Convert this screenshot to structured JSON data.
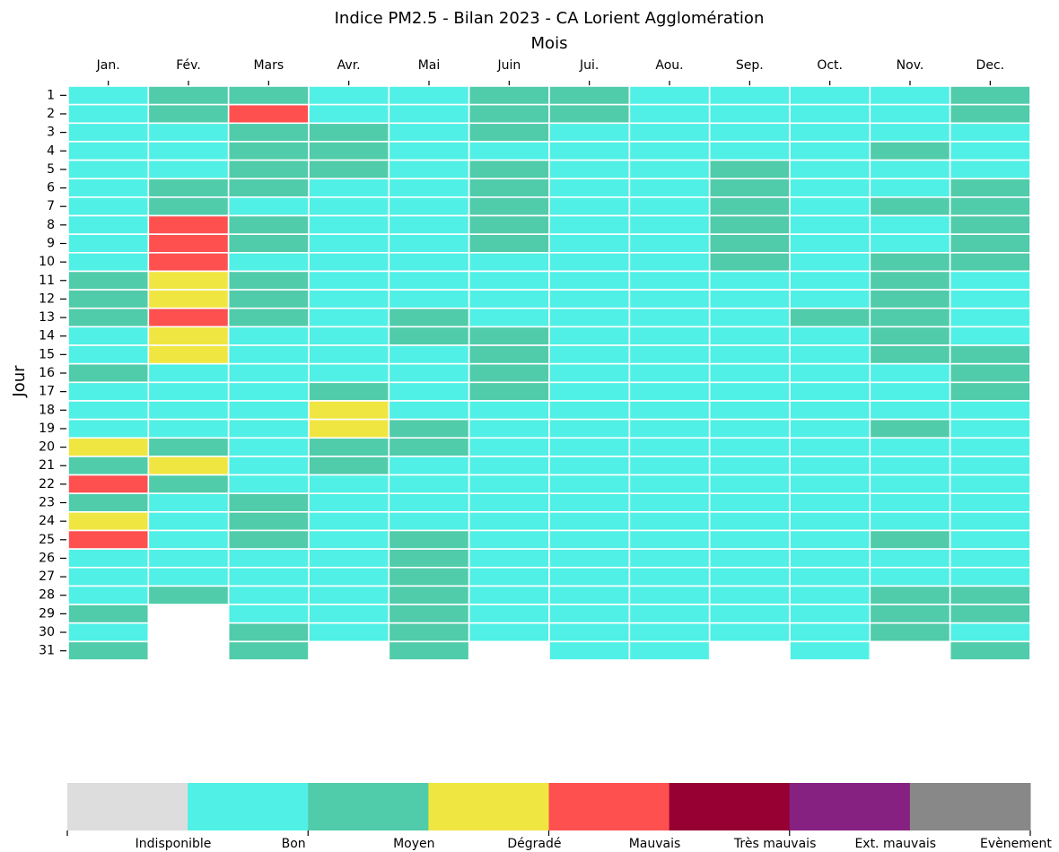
{
  "chart_data": {
    "type": "heatmap",
    "title": "Indice PM2.5 - Bilan 2023 - CA Lorient Agglomération",
    "xlabel": "Mois",
    "ylabel": "Jour",
    "columns": [
      "Jan.",
      "Fév.",
      "Mars",
      "Avr.",
      "Mai",
      "Juin",
      "Jui.",
      "Aou.",
      "Sep.",
      "Oct.",
      "Nov.",
      "Dec."
    ],
    "rows": [
      1,
      2,
      3,
      4,
      5,
      6,
      7,
      8,
      9,
      10,
      11,
      12,
      13,
      14,
      15,
      16,
      17,
      18,
      19,
      20,
      21,
      22,
      23,
      24,
      25,
      26,
      27,
      28,
      29,
      30,
      31
    ],
    "classes": [
      {
        "name": "Indisponible",
        "color": "#dddddd"
      },
      {
        "name": "Bon",
        "color": "#50f0e6"
      },
      {
        "name": "Moyen",
        "color": "#50ccaa"
      },
      {
        "name": "Dégradé",
        "color": "#f0e641"
      },
      {
        "name": "Mauvais",
        "color": "#ff5050"
      },
      {
        "name": "Très mauvais",
        "color": "#960032"
      },
      {
        "name": "Ext. mauvais",
        "color": "#872181"
      },
      {
        "name": "Evènement",
        "color": "#888888"
      }
    ],
    "values": [
      [
        1,
        2,
        2,
        1,
        1,
        2,
        2,
        1,
        1,
        1,
        1,
        2
      ],
      [
        1,
        2,
        4,
        1,
        1,
        2,
        2,
        1,
        1,
        1,
        1,
        2
      ],
      [
        1,
        1,
        2,
        2,
        1,
        2,
        1,
        1,
        1,
        1,
        1,
        1
      ],
      [
        1,
        1,
        2,
        2,
        1,
        1,
        1,
        1,
        1,
        1,
        2,
        1
      ],
      [
        1,
        1,
        2,
        2,
        1,
        2,
        1,
        1,
        2,
        1,
        1,
        1
      ],
      [
        1,
        2,
        2,
        1,
        1,
        2,
        1,
        1,
        2,
        1,
        1,
        2
      ],
      [
        1,
        2,
        1,
        1,
        1,
        2,
        1,
        1,
        2,
        1,
        2,
        2
      ],
      [
        1,
        4,
        2,
        1,
        1,
        2,
        1,
        1,
        2,
        1,
        1,
        2
      ],
      [
        1,
        4,
        2,
        1,
        1,
        2,
        1,
        1,
        2,
        1,
        1,
        2
      ],
      [
        1,
        4,
        1,
        1,
        1,
        1,
        1,
        1,
        2,
        1,
        2,
        2
      ],
      [
        2,
        3,
        2,
        1,
        1,
        1,
        1,
        1,
        1,
        1,
        2,
        1
      ],
      [
        2,
        3,
        2,
        1,
        1,
        1,
        1,
        1,
        1,
        1,
        2,
        1
      ],
      [
        2,
        4,
        2,
        1,
        2,
        1,
        1,
        1,
        1,
        2,
        2,
        1
      ],
      [
        1,
        3,
        1,
        1,
        2,
        2,
        1,
        1,
        1,
        1,
        2,
        1
      ],
      [
        1,
        3,
        1,
        1,
        1,
        2,
        1,
        1,
        1,
        1,
        2,
        2
      ],
      [
        2,
        1,
        1,
        1,
        1,
        2,
        1,
        1,
        1,
        1,
        1,
        2
      ],
      [
        1,
        1,
        1,
        2,
        1,
        2,
        1,
        1,
        1,
        1,
        1,
        2
      ],
      [
        1,
        1,
        1,
        3,
        1,
        1,
        1,
        1,
        1,
        1,
        1,
        1
      ],
      [
        1,
        1,
        1,
        3,
        2,
        1,
        1,
        1,
        1,
        1,
        2,
        1
      ],
      [
        3,
        2,
        1,
        2,
        2,
        1,
        1,
        1,
        1,
        1,
        1,
        1
      ],
      [
        2,
        3,
        1,
        2,
        1,
        1,
        1,
        1,
        1,
        1,
        1,
        1
      ],
      [
        4,
        2,
        1,
        1,
        1,
        1,
        1,
        1,
        1,
        1,
        1,
        1
      ],
      [
        2,
        1,
        2,
        1,
        1,
        1,
        1,
        1,
        1,
        1,
        1,
        1
      ],
      [
        3,
        1,
        2,
        1,
        1,
        1,
        1,
        1,
        1,
        1,
        1,
        1
      ],
      [
        4,
        1,
        2,
        1,
        2,
        1,
        1,
        1,
        1,
        1,
        2,
        1
      ],
      [
        1,
        1,
        1,
        1,
        2,
        1,
        1,
        1,
        1,
        1,
        1,
        1
      ],
      [
        1,
        1,
        1,
        1,
        2,
        1,
        1,
        1,
        1,
        1,
        1,
        1
      ],
      [
        1,
        2,
        1,
        1,
        2,
        1,
        1,
        1,
        1,
        1,
        2,
        2
      ],
      [
        2,
        null,
        1,
        1,
        2,
        1,
        1,
        1,
        1,
        1,
        2,
        2
      ],
      [
        1,
        null,
        2,
        1,
        2,
        1,
        1,
        1,
        1,
        1,
        2,
        1
      ],
      [
        2,
        null,
        2,
        null,
        2,
        null,
        1,
        1,
        null,
        1,
        null,
        2
      ]
    ]
  }
}
